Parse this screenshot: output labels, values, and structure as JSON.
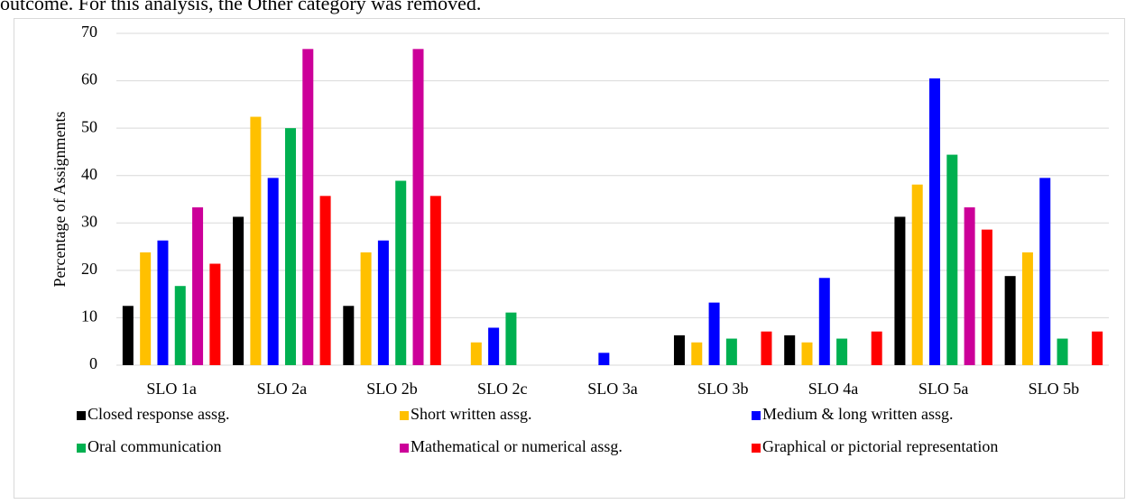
{
  "intro_text": "outcome. For this analysis, the Other category was removed.",
  "chart_data": {
    "type": "bar",
    "ylabel": "Percentage of Assignments",
    "categories": [
      "SLO 1a",
      "SLO 2a",
      "SLO 2b",
      "SLO 2c",
      "SLO 3a",
      "SLO 3b",
      "SLO 4a",
      "SLO 5a",
      "SLO 5b"
    ],
    "series": [
      {
        "name": "Closed response assg.",
        "color": "#000000",
        "values": [
          12.5,
          31.3,
          12.5,
          0,
          0,
          6.3,
          6.3,
          31.3,
          18.8
        ]
      },
      {
        "name": "Short written assg.",
        "color": "#ffc000",
        "values": [
          23.8,
          52.4,
          23.8,
          4.8,
          0,
          4.8,
          4.8,
          38.1,
          23.8
        ]
      },
      {
        "name": "Medium & long written assg.",
        "color": "#0000ff",
        "values": [
          26.3,
          39.5,
          26.3,
          7.9,
          2.6,
          13.2,
          18.4,
          60.5,
          39.5
        ]
      },
      {
        "name": "Oral communication",
        "color": "#00b050",
        "values": [
          16.7,
          50.0,
          38.9,
          11.1,
          0,
          5.6,
          5.6,
          44.4,
          5.6
        ]
      },
      {
        "name": "Mathematical or numerical assg.",
        "color": "#cc0099",
        "values": [
          33.3,
          66.7,
          66.7,
          0,
          0,
          0,
          0,
          33.3,
          0
        ]
      },
      {
        "name": "Graphical or pictorial representation",
        "color": "#ff0000",
        "values": [
          21.4,
          35.7,
          35.7,
          0,
          0,
          7.1,
          7.1,
          28.6,
          7.1
        ]
      }
    ],
    "ylim": [
      0,
      70
    ],
    "yticks": [
      0,
      10,
      20,
      30,
      40,
      50,
      60,
      70
    ],
    "grid": true,
    "legend": "bottom"
  }
}
